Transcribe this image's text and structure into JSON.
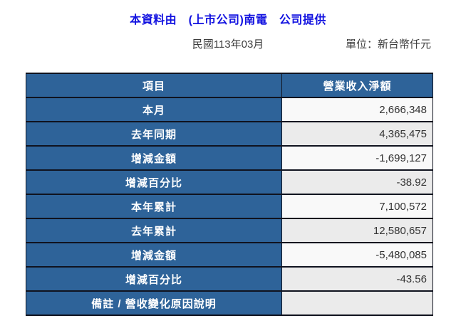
{
  "header": {
    "title": "本資料由　(上市公司)南電　公司提供",
    "period": "民國113年03月",
    "unit_label": "單位：新台幣仟元"
  },
  "table": {
    "columns": [
      "項目",
      "營業收入淨額"
    ],
    "rows": [
      {
        "label": "本月",
        "value": "2,666,348",
        "shade": "light"
      },
      {
        "label": "去年同期",
        "value": "4,365,475",
        "shade": "gray"
      },
      {
        "label": "增減金額",
        "value": "-1,699,127",
        "shade": "light"
      },
      {
        "label": "增減百分比",
        "value": "-38.92",
        "shade": "gray"
      },
      {
        "label": "本年累計",
        "value": "7,100,572",
        "shade": "light"
      },
      {
        "label": "去年累計",
        "value": "12,580,657",
        "shade": "gray"
      },
      {
        "label": "增減金額",
        "value": "-5,480,085",
        "shade": "light"
      },
      {
        "label": "增減百分比",
        "value": "-43.56",
        "shade": "gray"
      },
      {
        "label": "備註 / 營收變化原因說明",
        "value": "",
        "shade": "gray"
      }
    ]
  },
  "colors": {
    "title_blue": "#1212e0",
    "cell_blue": "#2e6399",
    "border_dark": "#10131f",
    "row_light": "#f9f9f9",
    "row_gray": "#ebebeb"
  }
}
